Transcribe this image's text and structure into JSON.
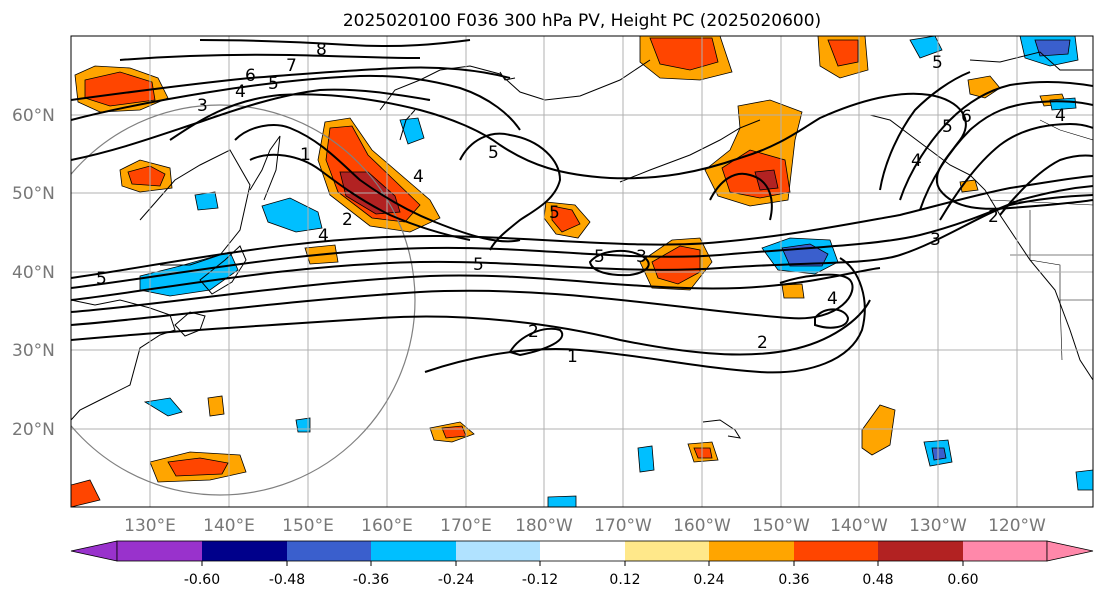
{
  "title": "2025020100 F036 300 hPa PV, Height PC (2025020600)",
  "lat_labels": [
    "60°N",
    "50°N",
    "40°N",
    "30°N",
    "20°N"
  ],
  "lon_labels": [
    "130°E",
    "140°E",
    "150°E",
    "160°E",
    "170°E",
    "180°W",
    "170°W",
    "160°W",
    "150°W",
    "140°W",
    "130°W",
    "120°W"
  ],
  "colorbar": {
    "tick_labels": [
      "-0.60",
      "-0.48",
      "-0.36",
      "-0.24",
      "-0.12",
      "0.12",
      "0.24",
      "0.36",
      "0.48",
      "0.60"
    ],
    "colors": [
      "#9932cc",
      "#00008b",
      "#3a5fcd",
      "#00bfff",
      "#b0e2ff",
      "#ffffff",
      "#ffe88a",
      "#ffa500",
      "#ff4500",
      "#b22222",
      "#ff88aa"
    ]
  },
  "contour_labels": [
    "8",
    "7",
    "6",
    "5",
    "4",
    "3",
    "1",
    "2",
    "4",
    "5",
    "4",
    "5",
    "5",
    "5",
    "3",
    "2",
    "1",
    "2",
    "4",
    "5",
    "3",
    "6",
    "4",
    "5",
    "5",
    "2",
    "4"
  ]
}
